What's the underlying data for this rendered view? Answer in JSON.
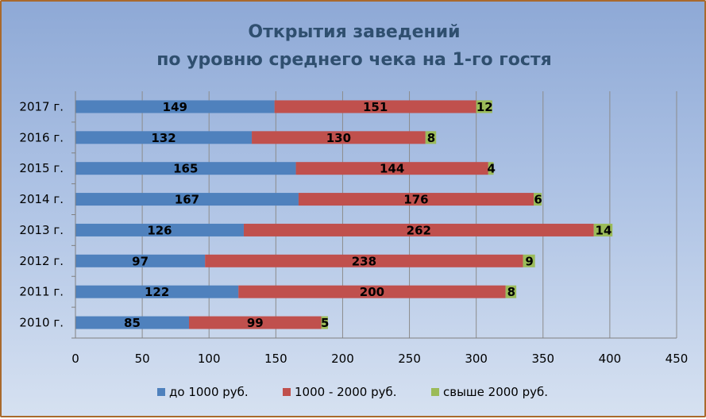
{
  "chart_data": {
    "type": "bar",
    "orientation": "horizontal",
    "stacked": true,
    "title": [
      "Открытия заведений",
      "по уровню среднего чека на 1-го гостя"
    ],
    "categories": [
      "2010 г.",
      "2011 г.",
      "2012 г.",
      "2013 г.",
      "2014 г.",
      "2015 г.",
      "2016 г.",
      "2017 г."
    ],
    "series": [
      {
        "name": "до 1000 руб.",
        "color": "#4f81bd",
        "values": [
          85,
          122,
          97,
          126,
          167,
          165,
          132,
          149
        ]
      },
      {
        "name": "1000 - 2000 руб.",
        "color": "#c0504d",
        "values": [
          99,
          200,
          238,
          262,
          176,
          144,
          130,
          151
        ]
      },
      {
        "name": "свыше 2000 руб.",
        "color": "#9bbb59",
        "values": [
          5,
          8,
          9,
          14,
          6,
          4,
          8,
          12
        ]
      }
    ],
    "xlim": [
      0,
      450
    ],
    "xticks": [
      0,
      50,
      100,
      150,
      200,
      250,
      300,
      350,
      400,
      450
    ],
    "grid": true,
    "legend_position": "bottom",
    "data_labels": true
  }
}
